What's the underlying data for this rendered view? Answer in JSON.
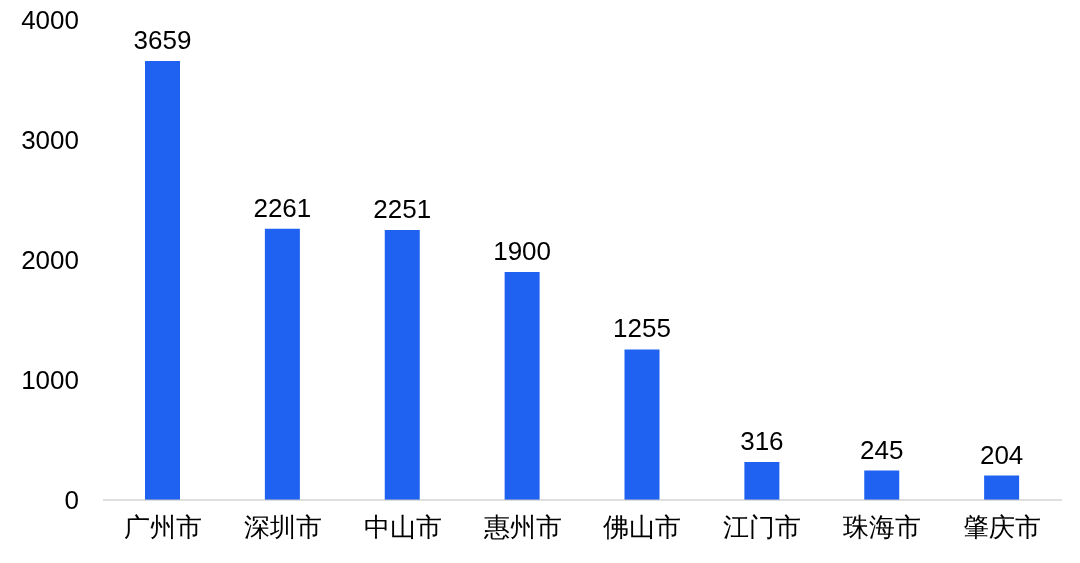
{
  "chart_data": {
    "type": "bar",
    "categories": [
      "广州市",
      "深圳市",
      "中山市",
      "惠州市",
      "佛山市",
      "江门市",
      "珠海市",
      "肇庆市"
    ],
    "values": [
      3659,
      2261,
      2251,
      1900,
      1255,
      316,
      245,
      204
    ],
    "color": "#1f62f2",
    "ylim": [
      0,
      4000
    ],
    "yticks": [
      0,
      1000,
      2000,
      3000,
      4000
    ],
    "grid": false,
    "data_labels": true
  }
}
